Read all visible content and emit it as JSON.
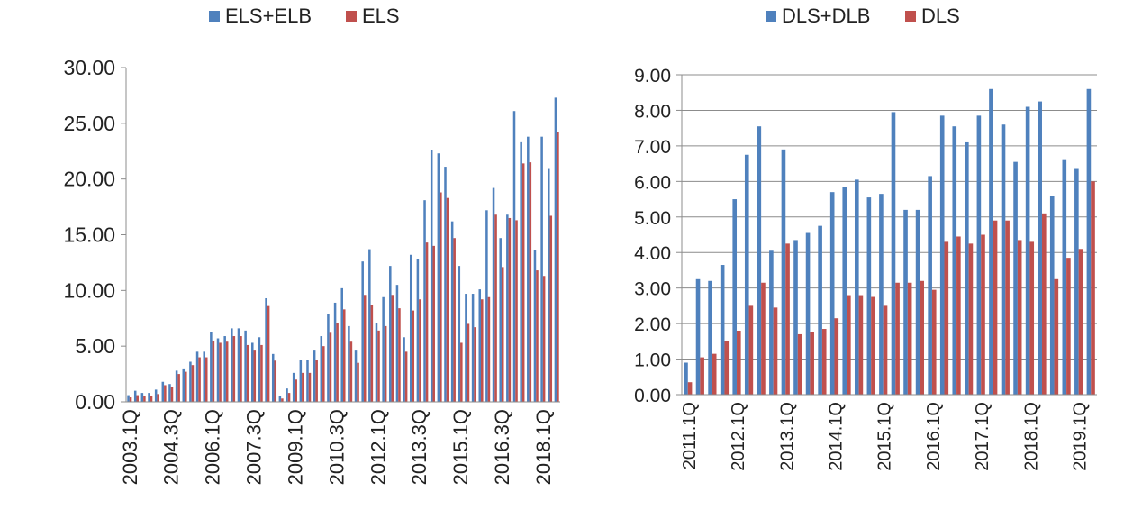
{
  "chart_data": [
    {
      "type": "bar",
      "legend": {
        "placement": "top"
      },
      "grid": false,
      "ylim": [
        0,
        30
      ],
      "yticks": [
        "0.00",
        "5.00",
        "10.00",
        "15.00",
        "20.00",
        "25.00",
        "30.00"
      ],
      "xticks": [
        "2003.1Q",
        "2004.3Q",
        "2006.1Q",
        "2007.3Q",
        "2009.1Q",
        "2010.3Q",
        "2012.1Q",
        "2013.3Q",
        "2015.1Q",
        "2016.3Q",
        "2018.1Q"
      ],
      "xtick_every": 6,
      "series": [
        {
          "name": "ELS+ELB",
          "color": "#4F81BD",
          "values": [
            0.6,
            1.0,
            0.8,
            0.8,
            1.1,
            1.8,
            1.6,
            2.8,
            3.0,
            3.6,
            4.5,
            4.5,
            6.3,
            5.7,
            5.9,
            6.6,
            6.6,
            6.4,
            5.3,
            5.8,
            9.3,
            4.3,
            0.5,
            1.2,
            2.6,
            3.8,
            3.8,
            4.6,
            5.9,
            7.9,
            8.9,
            10.2,
            6.8,
            4.6,
            12.6,
            13.7,
            7.1,
            9.4,
            12.2,
            10.5,
            5.8,
            13.2,
            12.8,
            18.1,
            22.6,
            22.3,
            21.1,
            16.2,
            12.2,
            9.7,
            9.7,
            10.1,
            17.2,
            19.2,
            14.7,
            16.8,
            26.1,
            23.3,
            23.8,
            13.6,
            23.8,
            20.9,
            27.3
          ]
        },
        {
          "name": "ELS",
          "color": "#C0504D",
          "values": [
            0.4,
            0.6,
            0.5,
            0.5,
            0.7,
            1.5,
            1.3,
            2.5,
            2.7,
            3.3,
            4.0,
            4.0,
            5.5,
            5.3,
            5.4,
            5.9,
            5.9,
            5.1,
            4.6,
            5.1,
            8.6,
            3.7,
            0.3,
            0.8,
            2.0,
            2.6,
            2.6,
            3.8,
            5.0,
            6.2,
            7.1,
            8.3,
            5.4,
            3.5,
            9.6,
            8.7,
            6.4,
            6.8,
            9.6,
            8.4,
            4.5,
            8.2,
            9.2,
            14.3,
            14.0,
            18.8,
            18.3,
            14.7,
            5.3,
            7.0,
            6.7,
            9.2,
            9.4,
            16.8,
            12.1,
            16.5,
            16.3,
            21.4,
            21.5,
            11.8,
            11.3,
            16.7,
            24.2
          ]
        }
      ]
    },
    {
      "type": "bar",
      "legend": {
        "placement": "top"
      },
      "grid": true,
      "ylim": [
        0,
        9
      ],
      "yticks": [
        "0.00",
        "1.00",
        "2.00",
        "3.00",
        "4.00",
        "5.00",
        "6.00",
        "7.00",
        "8.00",
        "9.00"
      ],
      "xticks": [
        "2011.1Q",
        "2012.1Q",
        "2013.1Q",
        "2014.1Q",
        "2015.1Q",
        "2016.1Q",
        "2017.1Q",
        "2018.1Q",
        "2019.1Q"
      ],
      "xtick_every": 4,
      "series": [
        {
          "name": "DLS+DLB",
          "color": "#4F81BD",
          "values": [
            0.9,
            3.25,
            3.2,
            3.65,
            5.5,
            6.75,
            7.55,
            4.05,
            6.9,
            4.35,
            4.55,
            4.75,
            5.7,
            5.85,
            6.05,
            5.55,
            5.65,
            7.95,
            5.2,
            5.2,
            6.15,
            7.85,
            7.55,
            7.1,
            7.85,
            8.6,
            7.6,
            6.55,
            8.1,
            8.25,
            5.6,
            6.6,
            6.35,
            8.6
          ]
        },
        {
          "name": "DLS",
          "color": "#C0504D",
          "values": [
            0.35,
            1.05,
            1.15,
            1.5,
            1.8,
            2.5,
            3.15,
            2.45,
            4.25,
            1.7,
            1.75,
            1.85,
            2.15,
            2.8,
            2.8,
            2.75,
            2.5,
            3.15,
            3.15,
            3.2,
            2.95,
            4.3,
            4.45,
            4.25,
            4.5,
            4.9,
            4.9,
            4.35,
            4.3,
            5.1,
            3.25,
            3.85,
            4.1,
            6.0
          ]
        }
      ]
    }
  ]
}
